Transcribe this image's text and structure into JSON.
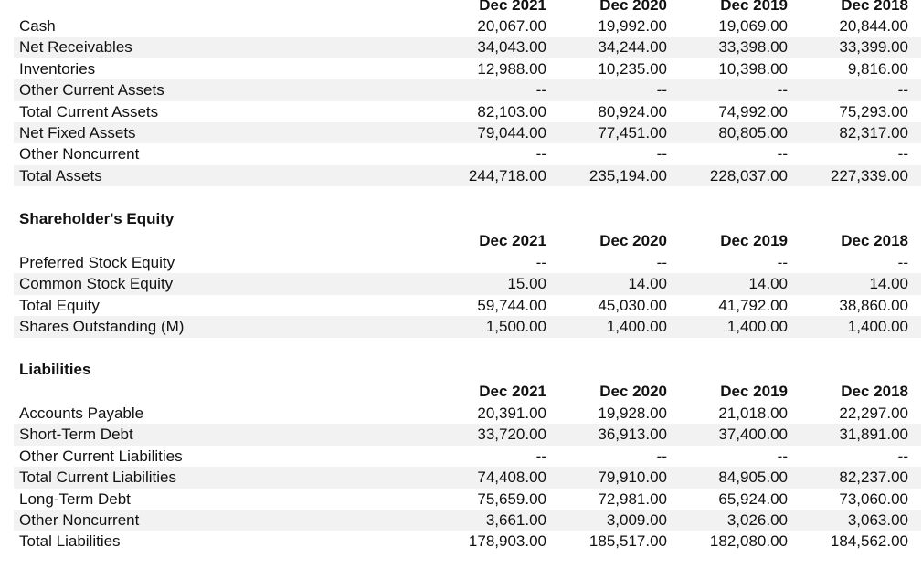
{
  "columns": [
    "Dec 2021",
    "Dec 2020",
    "Dec 2019",
    "Dec 2018"
  ],
  "assets": {
    "rows": [
      {
        "label": "Cash",
        "values": [
          "20,067.00",
          "19,992.00",
          "19,069.00",
          "20,844.00"
        ]
      },
      {
        "label": "Net Receivables",
        "values": [
          "34,043.00",
          "34,244.00",
          "33,398.00",
          "33,399.00"
        ]
      },
      {
        "label": "Inventories",
        "values": [
          "12,988.00",
          "10,235.00",
          "10,398.00",
          "9,816.00"
        ]
      },
      {
        "label": "Other Current Assets",
        "values": [
          "--",
          "--",
          "--",
          "--"
        ]
      },
      {
        "label": "Total Current Assets",
        "values": [
          "82,103.00",
          "80,924.00",
          "74,992.00",
          "75,293.00"
        ]
      },
      {
        "label": "Net Fixed Assets",
        "values": [
          "79,044.00",
          "77,451.00",
          "80,805.00",
          "82,317.00"
        ]
      },
      {
        "label": "Other Noncurrent",
        "values": [
          "--",
          "--",
          "--",
          "--"
        ]
      },
      {
        "label": "Total Assets",
        "values": [
          "244,718.00",
          "235,194.00",
          "228,037.00",
          "227,339.00"
        ]
      }
    ]
  },
  "equity": {
    "title": "Shareholder's Equity",
    "rows": [
      {
        "label": "Preferred Stock Equity",
        "values": [
          "--",
          "--",
          "--",
          "--"
        ]
      },
      {
        "label": "Common Stock Equity",
        "values": [
          "15.00",
          "14.00",
          "14.00",
          "14.00"
        ]
      },
      {
        "label": "Total Equity",
        "values": [
          "59,744.00",
          "45,030.00",
          "41,792.00",
          "38,860.00"
        ]
      },
      {
        "label": "Shares Outstanding (M)",
        "values": [
          "1,500.00",
          "1,400.00",
          "1,400.00",
          "1,400.00"
        ]
      }
    ]
  },
  "liabilities": {
    "title": "Liabilities",
    "rows": [
      {
        "label": "Accounts Payable",
        "values": [
          "20,391.00",
          "19,928.00",
          "21,018.00",
          "22,297.00"
        ]
      },
      {
        "label": "Short-Term Debt",
        "values": [
          "33,720.00",
          "36,913.00",
          "37,400.00",
          "31,891.00"
        ]
      },
      {
        "label": "Other Current Liabilities",
        "values": [
          "--",
          "--",
          "--",
          "--"
        ]
      },
      {
        "label": "Total Current Liabilities",
        "values": [
          "74,408.00",
          "79,910.00",
          "84,905.00",
          "82,237.00"
        ]
      },
      {
        "label": "Long-Term Debt",
        "values": [
          "75,659.00",
          "72,981.00",
          "65,924.00",
          "73,060.00"
        ]
      },
      {
        "label": "Other Noncurrent",
        "values": [
          "3,661.00",
          "3,009.00",
          "3,026.00",
          "3,063.00"
        ]
      },
      {
        "label": "Total Liabilities",
        "values": [
          "178,903.00",
          "185,517.00",
          "182,080.00",
          "184,562.00"
        ]
      }
    ]
  },
  "colors": {
    "row_shade": "#f2f2f2",
    "text": "#111111",
    "background": "#ffffff"
  }
}
